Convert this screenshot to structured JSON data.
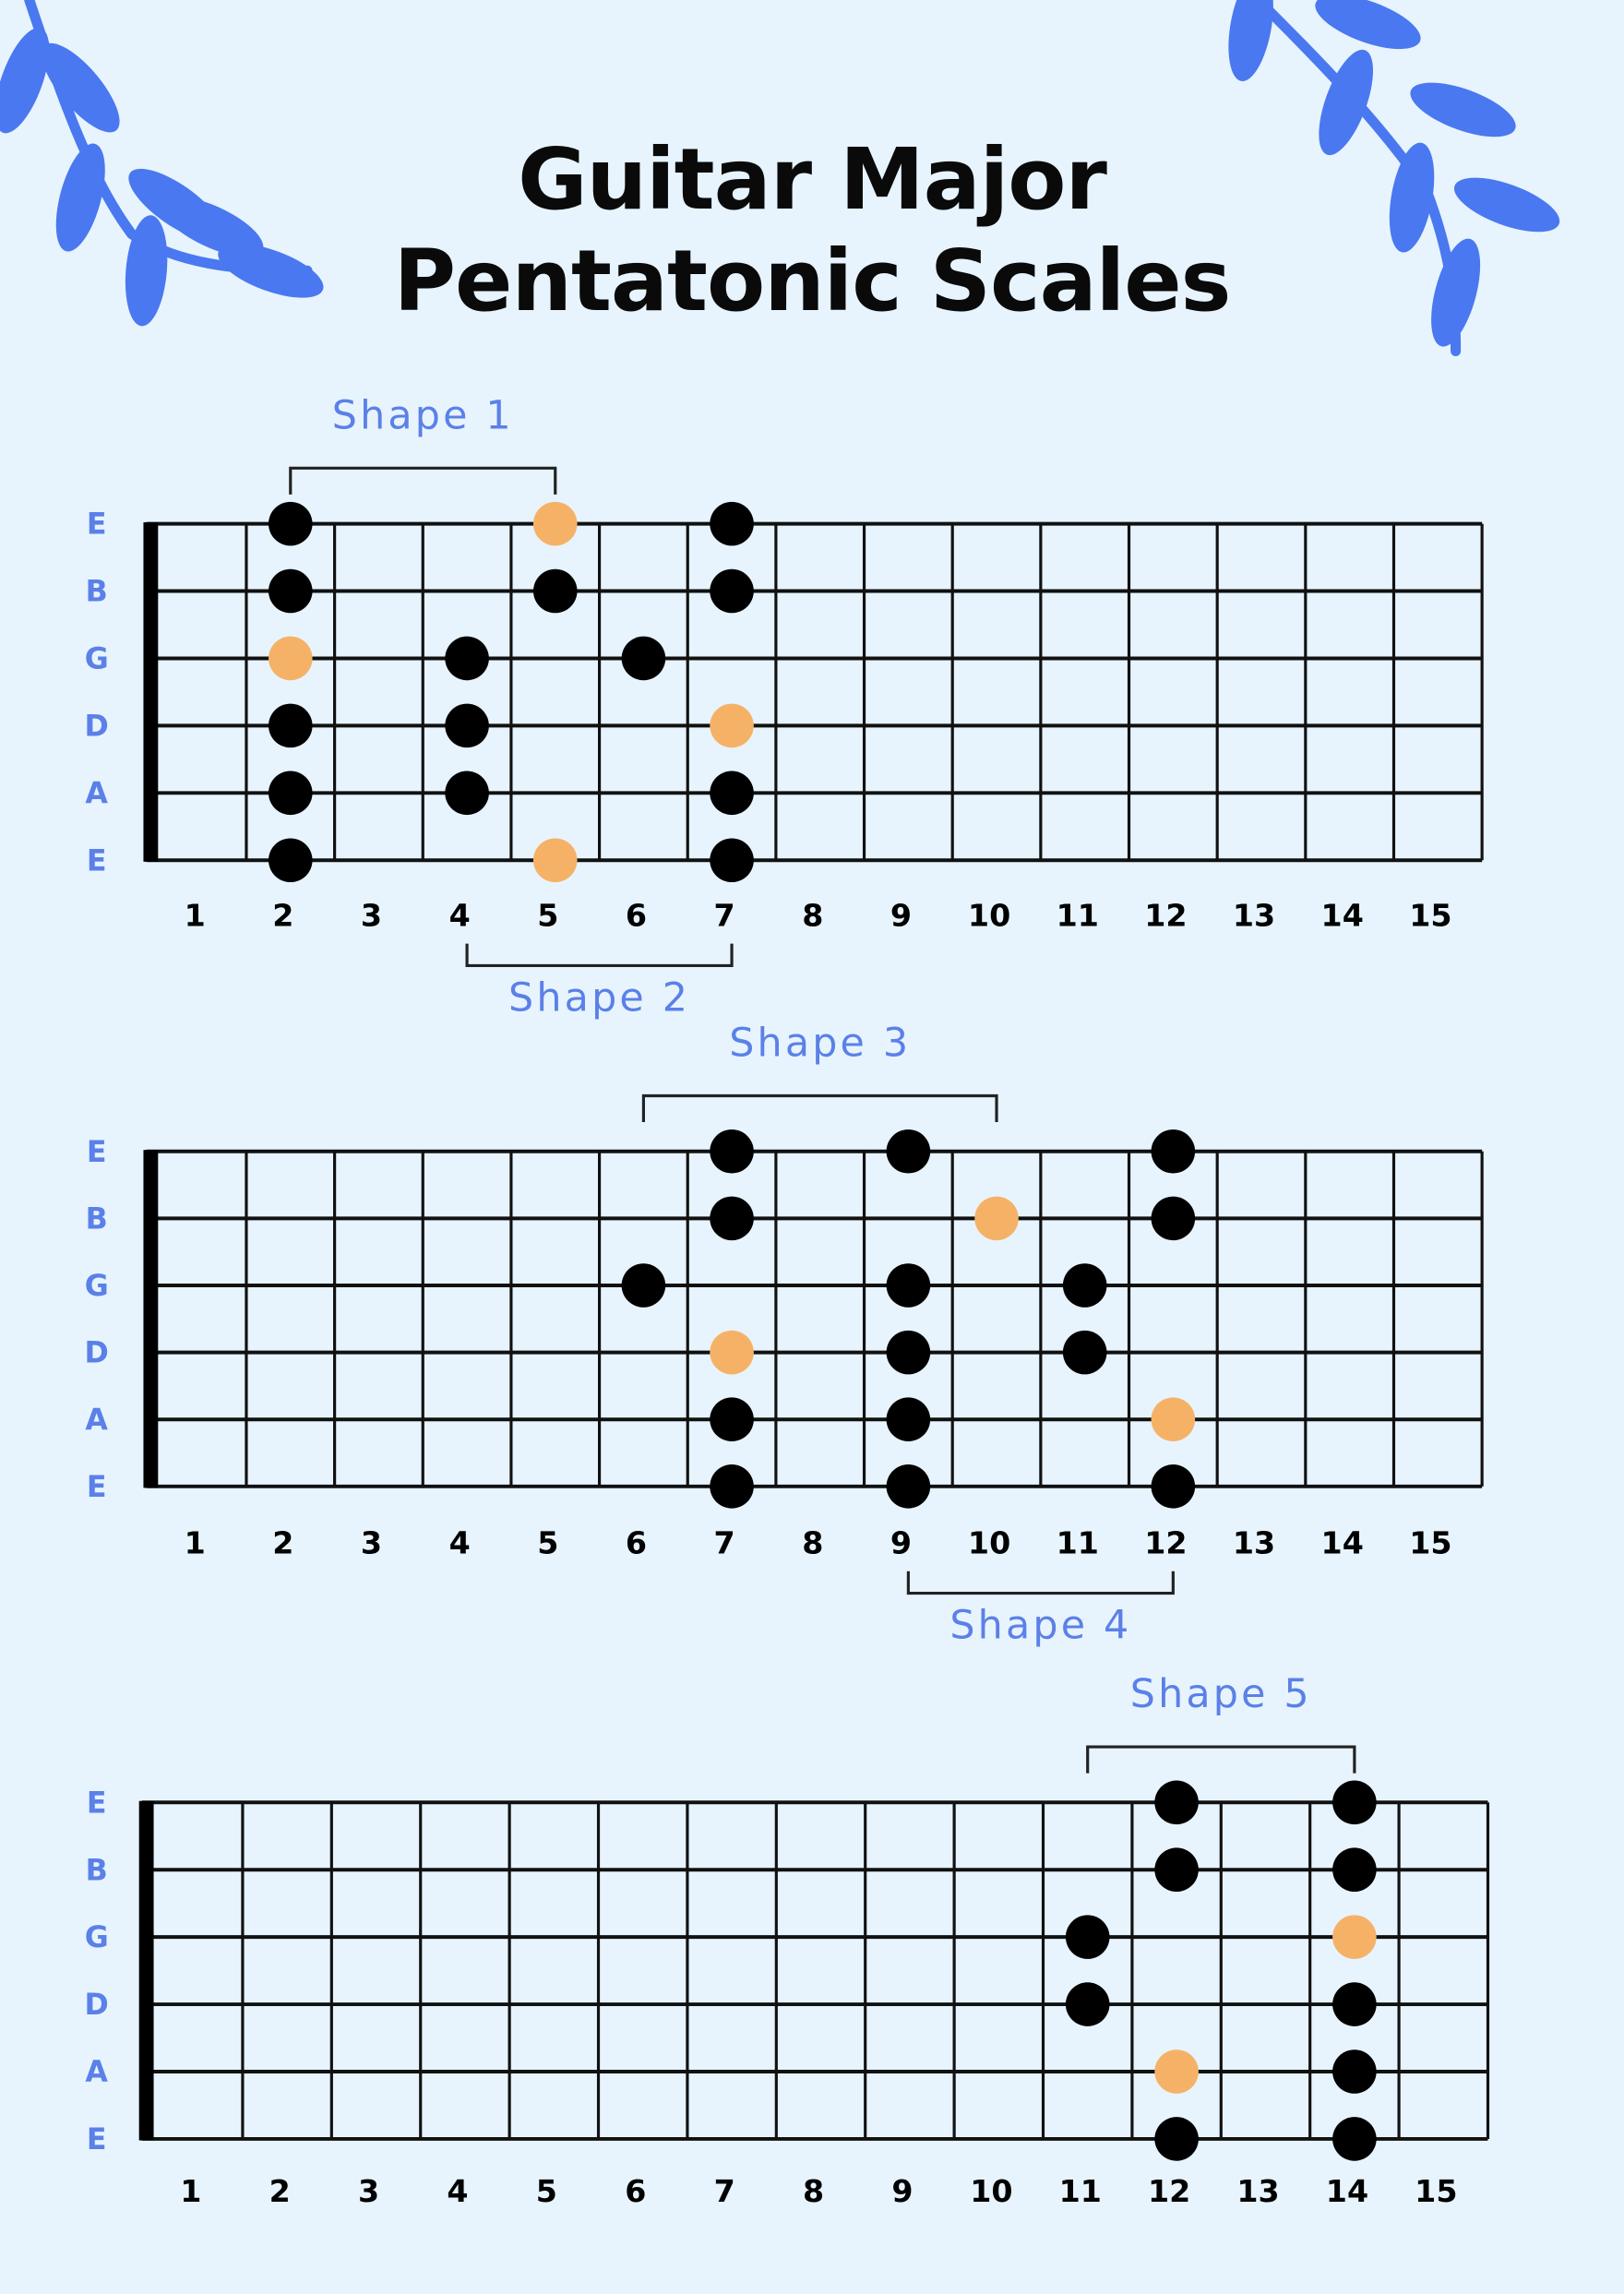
{
  "title": {
    "line1": "Guitar Major",
    "line2": "Pentatonic Scales"
  },
  "colors": {
    "background": "#e7f4fd",
    "leaf": "#4a78f0",
    "label": "#5b80e8",
    "root_note": "#f5b267",
    "note": "#000000",
    "line": "#111111"
  },
  "string_labels": [
    "E",
    "B",
    "G",
    "D",
    "A",
    "E"
  ],
  "fret_numbers": [
    "1",
    "2",
    "3",
    "4",
    "5",
    "6",
    "7",
    "8",
    "9",
    "10",
    "11",
    "12",
    "13",
    "14",
    "15"
  ],
  "legend_meaning": {
    "black": "scale note",
    "orange": "root note"
  },
  "boards": [
    {
      "notes": [
        {
          "string": 0,
          "fret": 2,
          "root": false
        },
        {
          "string": 0,
          "fret": 5,
          "root": true
        },
        {
          "string": 0,
          "fret": 7,
          "root": false
        },
        {
          "string": 1,
          "fret": 2,
          "root": false
        },
        {
          "string": 1,
          "fret": 5,
          "root": false
        },
        {
          "string": 1,
          "fret": 7,
          "root": false
        },
        {
          "string": 2,
          "fret": 2,
          "root": true
        },
        {
          "string": 2,
          "fret": 4,
          "root": false
        },
        {
          "string": 2,
          "fret": 6,
          "root": false
        },
        {
          "string": 3,
          "fret": 2,
          "root": false
        },
        {
          "string": 3,
          "fret": 4,
          "root": false
        },
        {
          "string": 3,
          "fret": 7,
          "root": true
        },
        {
          "string": 4,
          "fret": 2,
          "root": false
        },
        {
          "string": 4,
          "fret": 4,
          "root": false
        },
        {
          "string": 4,
          "fret": 7,
          "root": false
        },
        {
          "string": 5,
          "fret": 2,
          "root": false
        },
        {
          "string": 5,
          "fret": 5,
          "root": true
        },
        {
          "string": 5,
          "fret": 7,
          "root": false
        }
      ],
      "shapes": [
        {
          "label": "Shape 1",
          "from_fret": 2,
          "to_fret": 5,
          "side": "above"
        },
        {
          "label": "Shape 2",
          "from_fret": 4,
          "to_fret": 7,
          "side": "below"
        }
      ]
    },
    {
      "notes": [
        {
          "string": 0,
          "fret": 7,
          "root": false
        },
        {
          "string": 0,
          "fret": 9,
          "root": false
        },
        {
          "string": 0,
          "fret": 12,
          "root": false
        },
        {
          "string": 1,
          "fret": 7,
          "root": false
        },
        {
          "string": 1,
          "fret": 10,
          "root": true
        },
        {
          "string": 1,
          "fret": 12,
          "root": false
        },
        {
          "string": 2,
          "fret": 6,
          "root": false
        },
        {
          "string": 2,
          "fret": 9,
          "root": false
        },
        {
          "string": 2,
          "fret": 11,
          "root": false
        },
        {
          "string": 3,
          "fret": 7,
          "root": true
        },
        {
          "string": 3,
          "fret": 9,
          "root": false
        },
        {
          "string": 3,
          "fret": 11,
          "root": false
        },
        {
          "string": 4,
          "fret": 7,
          "root": false
        },
        {
          "string": 4,
          "fret": 9,
          "root": false
        },
        {
          "string": 4,
          "fret": 12,
          "root": true
        },
        {
          "string": 5,
          "fret": 7,
          "root": false
        },
        {
          "string": 5,
          "fret": 9,
          "root": false
        },
        {
          "string": 5,
          "fret": 12,
          "root": false
        }
      ],
      "shapes": [
        {
          "label": "Shape 3",
          "from_fret": 6,
          "to_fret": 10,
          "side": "above"
        },
        {
          "label": "Shape 4",
          "from_fret": 9,
          "to_fret": 12,
          "side": "below"
        }
      ]
    },
    {
      "notes": [
        {
          "string": 0,
          "fret": 12,
          "root": false
        },
        {
          "string": 0,
          "fret": 14,
          "root": false
        },
        {
          "string": 1,
          "fret": 12,
          "root": false
        },
        {
          "string": 1,
          "fret": 14,
          "root": false
        },
        {
          "string": 2,
          "fret": 11,
          "root": false
        },
        {
          "string": 2,
          "fret": 14,
          "root": true
        },
        {
          "string": 3,
          "fret": 11,
          "root": false
        },
        {
          "string": 3,
          "fret": 14,
          "root": false
        },
        {
          "string": 4,
          "fret": 12,
          "root": true
        },
        {
          "string": 4,
          "fret": 14,
          "root": false
        },
        {
          "string": 5,
          "fret": 12,
          "root": false
        },
        {
          "string": 5,
          "fret": 14,
          "root": false
        }
      ],
      "shapes": [
        {
          "label": "Shape 5",
          "from_fret": 11,
          "to_fret": 14,
          "side": "above"
        }
      ]
    }
  ]
}
